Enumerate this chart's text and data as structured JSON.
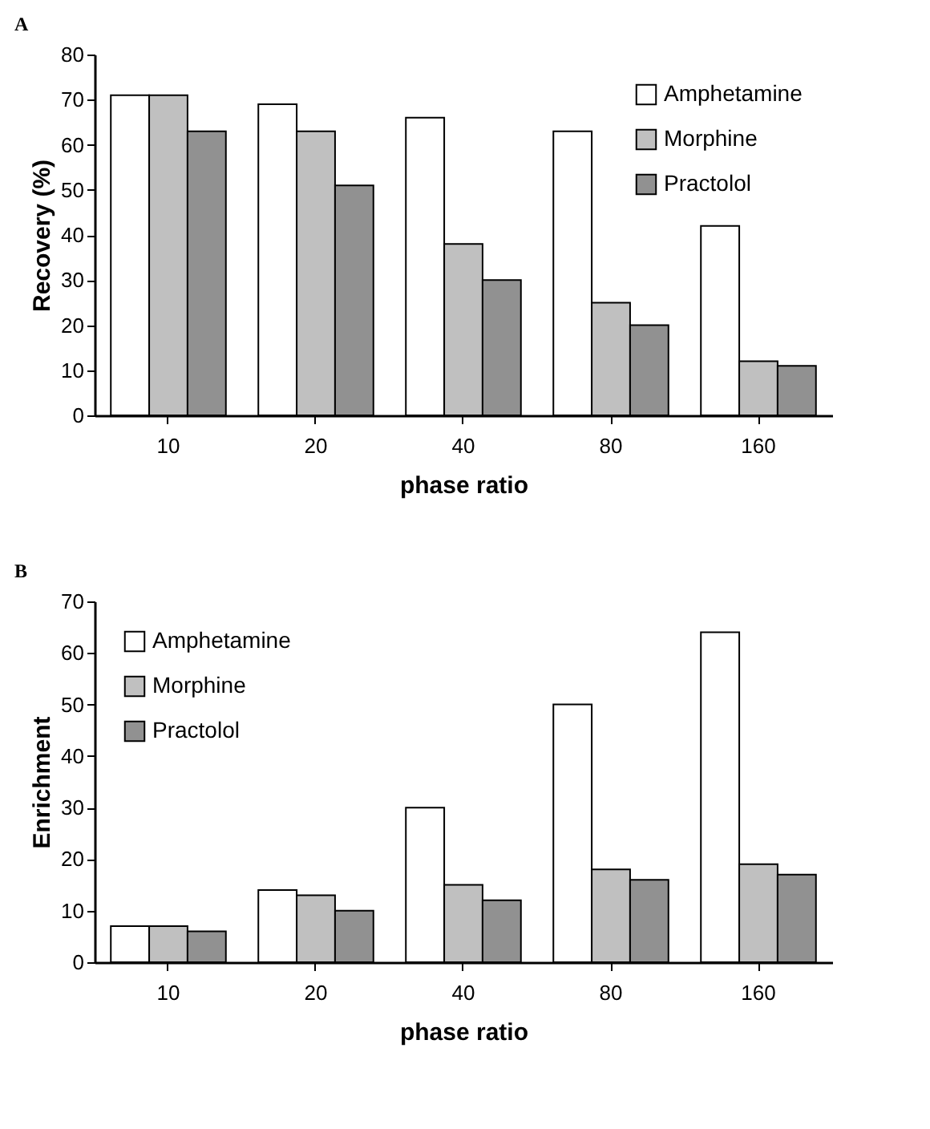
{
  "chart_data": [
    {
      "type": "bar",
      "title": "A",
      "xlabel": "phase ratio",
      "ylabel": "Recovery (%)",
      "categories": [
        "10",
        "20",
        "40",
        "80",
        "160"
      ],
      "ylim": [
        0,
        80
      ],
      "yticks": [
        0,
        10,
        20,
        30,
        40,
        50,
        60,
        70,
        80
      ],
      "legend": "top right",
      "series": [
        {
          "name": "Amphetamine",
          "color": "#ffffff",
          "values": [
            71,
            69,
            66,
            63,
            42
          ]
        },
        {
          "name": "Morphine",
          "color": "#c0c0c0",
          "values": [
            71,
            63,
            38,
            25,
            12
          ]
        },
        {
          "name": "Practolol",
          "color": "#919191",
          "values": [
            63,
            51,
            30,
            20,
            11
          ]
        }
      ]
    },
    {
      "type": "bar",
      "title": "B",
      "xlabel": "phase ratio",
      "ylabel": "Enrichment",
      "categories": [
        "10",
        "20",
        "40",
        "80",
        "160"
      ],
      "ylim": [
        0,
        70
      ],
      "yticks": [
        0,
        10,
        20,
        30,
        40,
        50,
        60,
        70
      ],
      "legend": "top left",
      "series": [
        {
          "name": "Amphetamine",
          "color": "#ffffff",
          "values": [
            7,
            14,
            30,
            50,
            64
          ]
        },
        {
          "name": "Morphine",
          "color": "#c0c0c0",
          "values": [
            7,
            13,
            15,
            18,
            19
          ]
        },
        {
          "name": "Practolol",
          "color": "#919191",
          "values": [
            6,
            10,
            12,
            16,
            17
          ]
        }
      ]
    }
  ]
}
